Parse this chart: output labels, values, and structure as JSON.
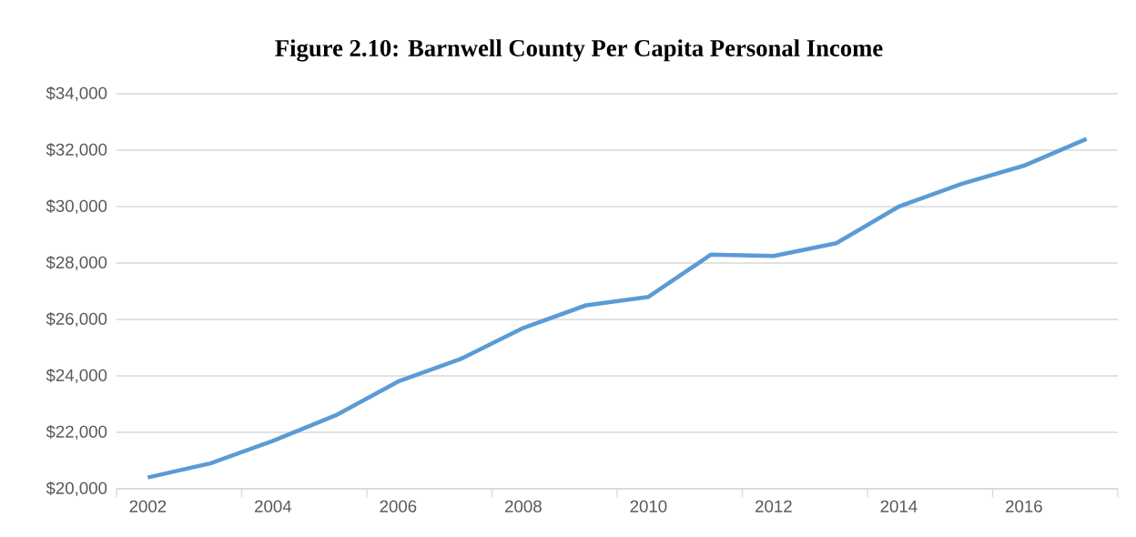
{
  "chart_data": {
    "type": "line",
    "title": "Figure 2.10: Barnwell County Per Capita Personal Income",
    "categories": [
      "2002",
      null,
      "2004",
      null,
      "2006",
      null,
      "2008",
      null,
      "2010",
      null,
      "2012",
      null,
      "2014",
      null,
      "2016",
      null
    ],
    "series": [
      {
        "color": "#5b9bd5",
        "values": [
          20400,
          20900,
          21700,
          22600,
          23800,
          24600,
          25700,
          26500,
          26800,
          28300,
          28250,
          28700,
          30000,
          30800,
          31450,
          32400
        ]
      }
    ],
    "ylim": [
      20000,
      34000
    ],
    "yticks": [
      {
        "value": 20000,
        "label": "$20,000"
      },
      {
        "value": 22000,
        "label": "$22,000"
      },
      {
        "value": 24000,
        "label": "$24,000"
      },
      {
        "value": 26000,
        "label": "$26,000"
      },
      {
        "value": 28000,
        "label": "$28,000"
      },
      {
        "value": 30000,
        "label": "$30,000"
      },
      {
        "value": 32000,
        "label": "$32,000"
      },
      {
        "value": 34000,
        "label": "$34,000"
      }
    ],
    "grid": "y",
    "legend": false,
    "marker": "none",
    "line_style": "solid"
  }
}
